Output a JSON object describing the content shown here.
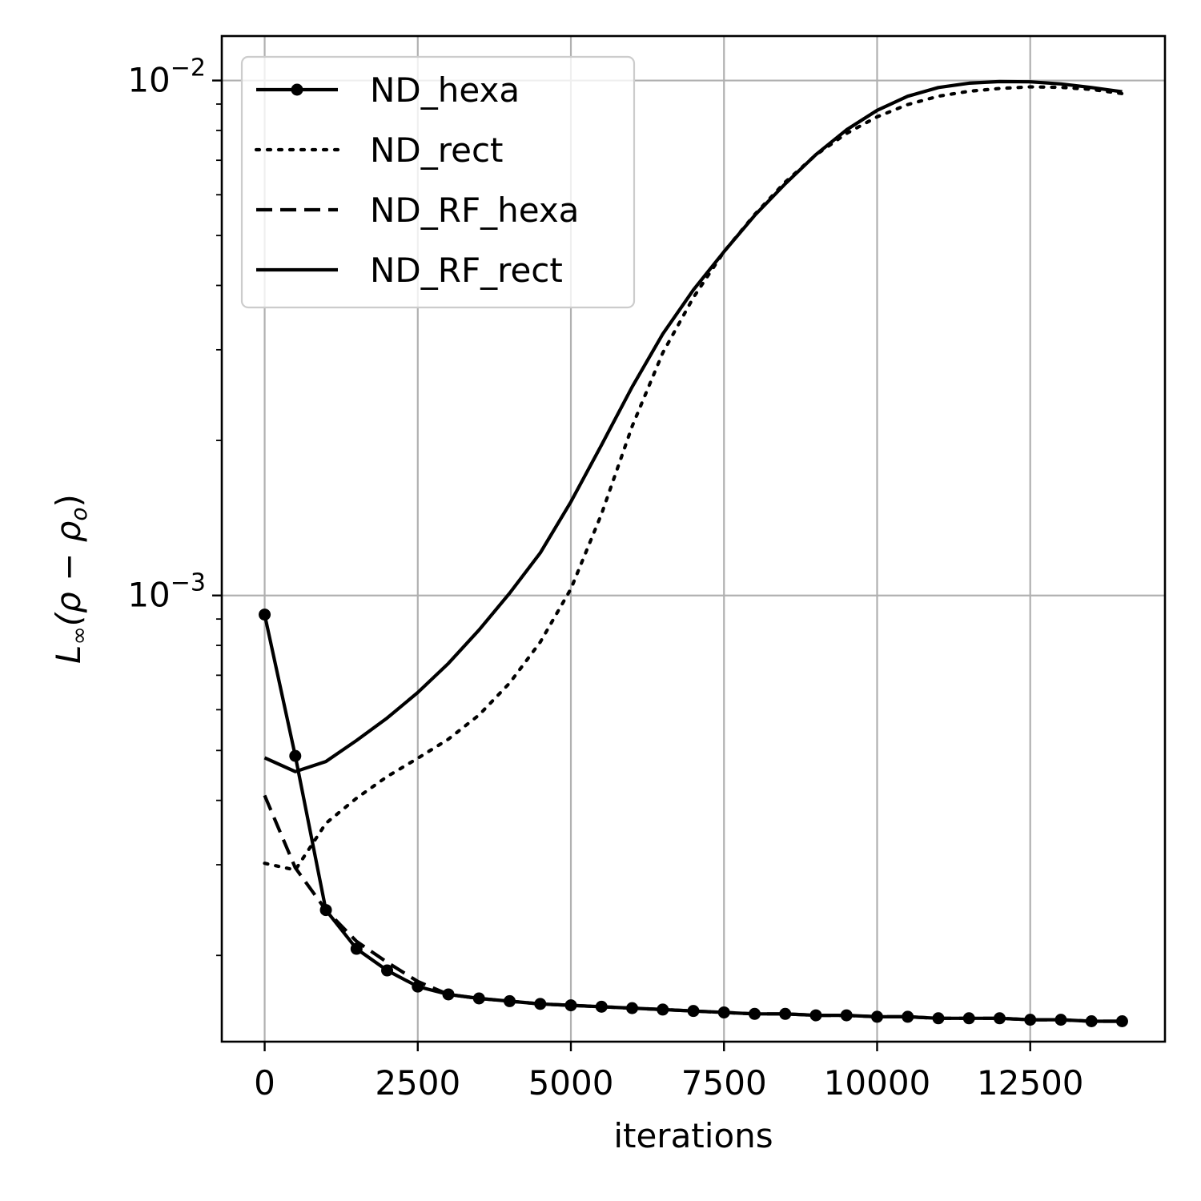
{
  "chart_data": {
    "type": "line",
    "xlabel": "iterations",
    "ylabel": "L∞(ρ − ρo)",
    "ylabel_parts": {
      "main": "L",
      "sub": "∞",
      "paren_open": "(ρ − ρ",
      "sub2": "o",
      "paren_close": ")"
    },
    "xlim": [
      -700,
      14700
    ],
    "ylim": [
      0.000136,
      0.0122
    ],
    "yscale": "log",
    "xticks": [
      0,
      2500,
      5000,
      7500,
      10000,
      12500
    ],
    "xtick_labels": [
      "0",
      "2500",
      "5000",
      "7500",
      "10000",
      "12500"
    ],
    "yticks": [
      0.001,
      0.01
    ],
    "ytick_labels": [
      {
        "base": "10",
        "exp": "−3"
      },
      {
        "base": "10",
        "exp": "−2"
      }
    ],
    "grid": true,
    "legend_position": "top-left",
    "series": [
      {
        "name": "ND_hexa",
        "style": "solid-marker",
        "x": [
          0,
          500,
          1000,
          1500,
          2000,
          2500,
          3000,
          3500,
          4000,
          4500,
          5000,
          5500,
          6000,
          6500,
          7000,
          7500,
          8000,
          8500,
          9000,
          9500,
          10000,
          10500,
          11000,
          11500,
          12000,
          12500,
          13000,
          13500,
          14000
        ],
        "y": [
          0.000918,
          0.000488,
          0.000245,
          0.000206,
          0.000187,
          0.000174,
          0.000168,
          0.000165,
          0.000163,
          0.000161,
          0.00016,
          0.000159,
          0.000158,
          0.000157,
          0.000156,
          0.000155,
          0.000154,
          0.000154,
          0.000153,
          0.000153,
          0.000152,
          0.000152,
          0.000151,
          0.000151,
          0.000151,
          0.00015,
          0.00015,
          0.000149,
          0.000149
        ]
      },
      {
        "name": "ND_rect",
        "style": "dotted",
        "x": [
          0,
          500,
          1000,
          1500,
          2000,
          2500,
          3000,
          3500,
          4000,
          4500,
          5000,
          5500,
          6000,
          6500,
          7000,
          7500,
          8000,
          8500,
          9000,
          9500,
          10000,
          10500,
          11000,
          11500,
          12000,
          12500,
          13000,
          13500,
          14000
        ],
        "y": [
          0.000302,
          0.000293,
          0.000361,
          0.000404,
          0.000445,
          0.000483,
          0.000526,
          0.000586,
          0.000676,
          0.000812,
          0.00103,
          0.00144,
          0.00213,
          0.00296,
          0.00379,
          0.00465,
          0.00549,
          0.00635,
          0.00717,
          0.00789,
          0.0085,
          0.00898,
          0.00932,
          0.00953,
          0.00965,
          0.00972,
          0.0097,
          0.00961,
          0.00943
        ]
      },
      {
        "name": "ND_RF_hexa",
        "style": "dashed",
        "x": [
          0,
          500,
          1000,
          1500,
          2000,
          2500,
          3000,
          3500,
          4000,
          4500,
          5000,
          5500,
          6000,
          6500,
          7000,
          7500,
          8000,
          8500,
          9000,
          9500,
          10000,
          10500,
          11000,
          11500,
          12000,
          12500,
          13000,
          13500,
          14000
        ],
        "y": [
          0.000409,
          0.000296,
          0.000245,
          0.000213,
          0.000194,
          0.000178,
          0.000168,
          0.000165,
          0.000163,
          0.000161,
          0.00016,
          0.000159,
          0.000158,
          0.000157,
          0.000156,
          0.000155,
          0.000154,
          0.000154,
          0.000153,
          0.000153,
          0.000152,
          0.000152,
          0.000151,
          0.000151,
          0.000151,
          0.00015,
          0.00015,
          0.000149,
          0.000149
        ]
      },
      {
        "name": "ND_RF_rect",
        "style": "solid",
        "x": [
          0,
          500,
          1000,
          1500,
          2000,
          2500,
          3000,
          3500,
          4000,
          4500,
          5000,
          5500,
          6000,
          6500,
          7000,
          7500,
          8000,
          8500,
          9000,
          9500,
          10000,
          10500,
          11000,
          11500,
          12000,
          12500,
          13000,
          13500,
          14000
        ],
        "y": [
          0.000484,
          0.000455,
          0.000476,
          0.000523,
          0.000578,
          0.000648,
          0.000738,
          0.000857,
          0.00101,
          0.00121,
          0.00152,
          0.00196,
          0.00254,
          0.00322,
          0.00392,
          0.00465,
          0.00547,
          0.0063,
          0.00718,
          0.00802,
          0.00875,
          0.00932,
          0.00969,
          0.00988,
          0.00995,
          0.00994,
          0.00985,
          0.00969,
          0.00951
        ]
      }
    ]
  }
}
